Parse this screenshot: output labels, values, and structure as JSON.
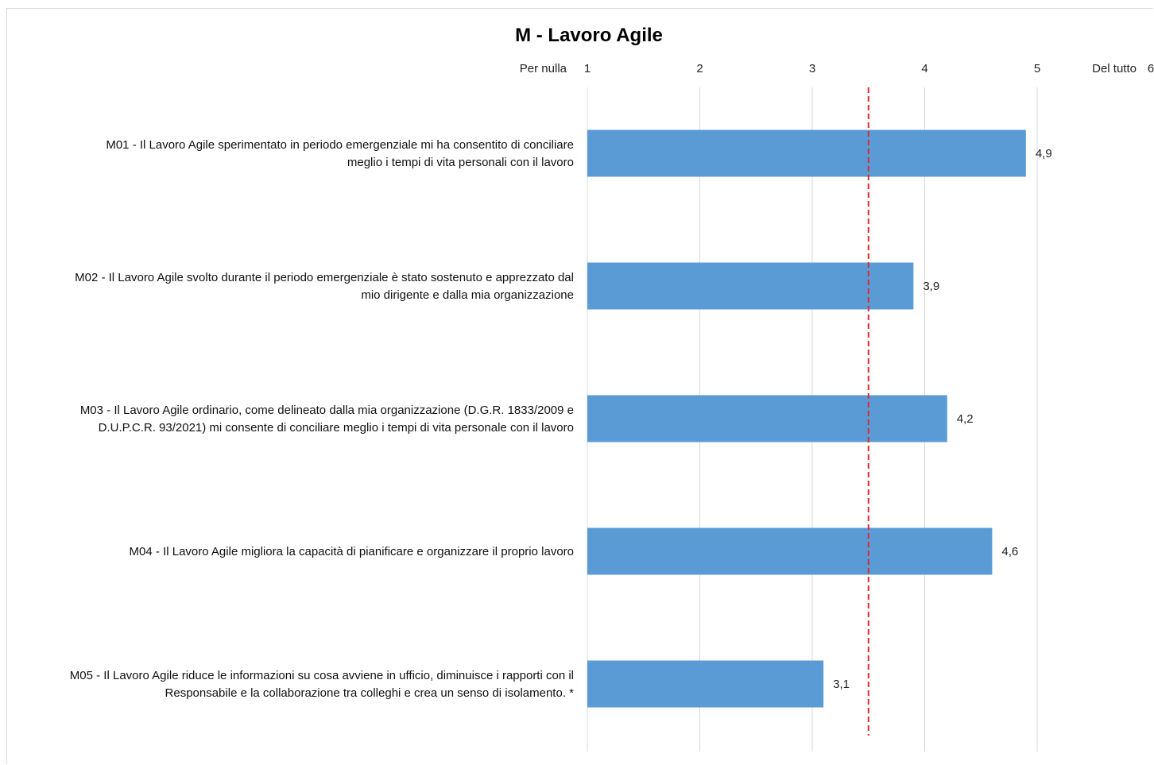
{
  "chart_data": {
    "type": "bar",
    "orientation": "horizontal",
    "title": "M - Lavoro Agile",
    "xlim": [
      1,
      5
    ],
    "x_ticks": [
      "1",
      "2",
      "3",
      "4",
      "5"
    ],
    "scale_min_label": "Per nulla",
    "scale_max_label": "Del tutto",
    "scale_max_value": "6",
    "grid": true,
    "reference_line": 3.5,
    "bar_color": "#5b9bd5",
    "reference_line_color": "#e0282e",
    "categories": [
      {
        "label_lines": [
          "M01 - Il Lavoro Agile sperimentato in periodo emergenziale mi ha consentito di conciliare",
          "meglio i tempi di vita personali con il lavoro"
        ],
        "value": 4.9,
        "value_label": "4,9"
      },
      {
        "label_lines": [
          "M02 - Il Lavoro Agile svolto durante il periodo emergenziale è stato sostenuto e apprezzato dal",
          "mio dirigente e dalla mia organizzazione"
        ],
        "value": 3.9,
        "value_label": "3,9"
      },
      {
        "label_lines": [
          "M03 - Il Lavoro Agile ordinario, come delineato dalla mia organizzazione (D.G.R. 1833/2009 e",
          "D.U.P.C.R. 93/2021) mi consente di conciliare meglio i tempi di vita personale con il lavoro"
        ],
        "value": 4.2,
        "value_label": "4,2"
      },
      {
        "label_lines": [
          "M04 - Il Lavoro Agile migliora la capacità di pianificare e organizzare il proprio lavoro"
        ],
        "value": 4.6,
        "value_label": "4,6"
      },
      {
        "label_lines": [
          "M05 - Il Lavoro Agile riduce le informazioni su cosa avviene in ufficio, diminuisce i rapporti con il",
          "Responsabile e la collaborazione tra colleghi e crea un senso di isolamento. *"
        ],
        "value": 3.1,
        "value_label": "3,1"
      }
    ]
  }
}
